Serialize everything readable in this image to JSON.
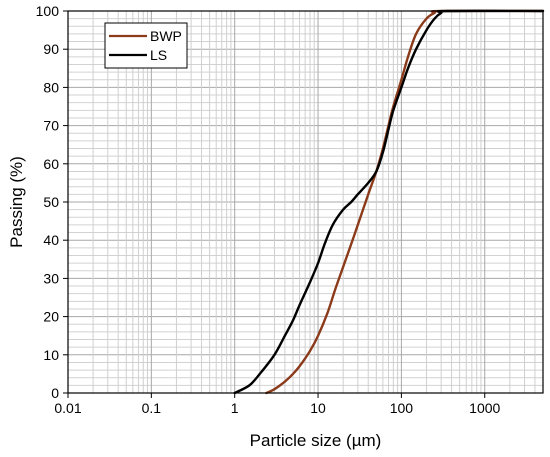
{
  "chart_data": {
    "type": "line",
    "xlabel": "Particle size (µm)",
    "ylabel": "Passing (%)",
    "x_scale": "log",
    "xlim": [
      0.01,
      5000
    ],
    "ylim": [
      0,
      100
    ],
    "x_ticks": [
      {
        "value": 0.01,
        "label": "0.01"
      },
      {
        "value": 0.1,
        "label": "0.1"
      },
      {
        "value": 1,
        "label": "1"
      },
      {
        "value": 10,
        "label": "10"
      },
      {
        "value": 100,
        "label": "100"
      },
      {
        "value": 1000,
        "label": "1000"
      }
    ],
    "y_ticks": [
      {
        "value": 0,
        "label": "0"
      },
      {
        "value": 10,
        "label": "10"
      },
      {
        "value": 20,
        "label": "20"
      },
      {
        "value": 30,
        "label": "30"
      },
      {
        "value": 40,
        "label": "40"
      },
      {
        "value": 50,
        "label": "50"
      },
      {
        "value": 60,
        "label": "60"
      },
      {
        "value": 70,
        "label": "70"
      },
      {
        "value": 80,
        "label": "80"
      },
      {
        "value": 90,
        "label": "90"
      },
      {
        "value": 100,
        "label": "100"
      }
    ],
    "grid": "minor-log-x-and-y",
    "legend": "top-left",
    "series": [
      {
        "name": "BWP",
        "color": "#8B3A1A",
        "points": [
          [
            2.4,
            0
          ],
          [
            3,
            1
          ],
          [
            4,
            3
          ],
          [
            5,
            5
          ],
          [
            6,
            7
          ],
          [
            8,
            11
          ],
          [
            10,
            15
          ],
          [
            13,
            21
          ],
          [
            16,
            27
          ],
          [
            20,
            33
          ],
          [
            25,
            39
          ],
          [
            30,
            44
          ],
          [
            40,
            52
          ],
          [
            50,
            58
          ],
          [
            60,
            64
          ],
          [
            70,
            70
          ],
          [
            80,
            75
          ],
          [
            100,
            82
          ],
          [
            120,
            88
          ],
          [
            150,
            94
          ],
          [
            200,
            98
          ],
          [
            250,
            99.5
          ],
          [
            300,
            100
          ],
          [
            5000,
            100
          ]
        ]
      },
      {
        "name": "LS",
        "color": "#000000",
        "points": [
          [
            1,
            0
          ],
          [
            1.5,
            2
          ],
          [
            2,
            5
          ],
          [
            3,
            10
          ],
          [
            4,
            15
          ],
          [
            5,
            19
          ],
          [
            6,
            23
          ],
          [
            8,
            29
          ],
          [
            10,
            34
          ],
          [
            12,
            39
          ],
          [
            15,
            44
          ],
          [
            20,
            48
          ],
          [
            25,
            50
          ],
          [
            30,
            52
          ],
          [
            40,
            55
          ],
          [
            50,
            58
          ],
          [
            60,
            63
          ],
          [
            70,
            69
          ],
          [
            80,
            74
          ],
          [
            100,
            80
          ],
          [
            120,
            85
          ],
          [
            150,
            90
          ],
          [
            200,
            95
          ],
          [
            250,
            98
          ],
          [
            300,
            99.5
          ],
          [
            350,
            100
          ],
          [
            5000,
            100
          ]
        ]
      }
    ]
  }
}
